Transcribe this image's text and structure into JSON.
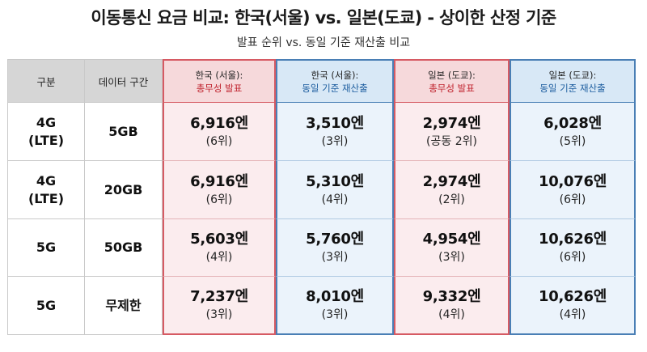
{
  "title": "이동통신 요금 비교: 한국(서울) vs. 일본(도쿄) - 상이한 산정 기준",
  "subtitle": "발표 순위 vs. 동일 기준 재산출 비교",
  "headers": {
    "category": "구분",
    "data_range": "데이터 구간",
    "kr_announced": {
      "line1": "한국 (서울):",
      "line2": "총무성 발표"
    },
    "kr_recalc": {
      "line1": "한국 (서울):",
      "line2": "동일 기준 재산출"
    },
    "jp_announced": {
      "line1": "일본 (도쿄):",
      "line2": "총무성 발표"
    },
    "jp_recalc": {
      "line1": "일본 (도쿄):",
      "line2": "동일 기준 재산출"
    }
  },
  "rows": [
    {
      "category": [
        "4G",
        "(LTE)"
      ],
      "data": "5GB",
      "kr_announced": {
        "price": "6,916엔",
        "rank": "(6위)"
      },
      "kr_recalc": {
        "price": "3,510엔",
        "rank": "(3위)"
      },
      "jp_announced": {
        "price": "2,974엔",
        "rank": "(공동 2위)"
      },
      "jp_recalc": {
        "price": "6,028엔",
        "rank": "(5위)"
      }
    },
    {
      "category": [
        "4G",
        "(LTE)"
      ],
      "data": "20GB",
      "kr_announced": {
        "price": "6,916엔",
        "rank": "(6위)"
      },
      "kr_recalc": {
        "price": "5,310엔",
        "rank": "(4위)"
      },
      "jp_announced": {
        "price": "2,974엔",
        "rank": "(2위)"
      },
      "jp_recalc": {
        "price": "10,076엔",
        "rank": "(6위)"
      }
    },
    {
      "category": [
        "5G"
      ],
      "data": "50GB",
      "kr_announced": {
        "price": "5,603엔",
        "rank": "(4위)"
      },
      "kr_recalc": {
        "price": "5,760엔",
        "rank": "(3위)"
      },
      "jp_announced": {
        "price": "4,954엔",
        "rank": "(3위)"
      },
      "jp_recalc": {
        "price": "10,626엔",
        "rank": "(6위)"
      }
    },
    {
      "category": [
        "5G"
      ],
      "data": "무제한",
      "kr_announced": {
        "price": "7,237엔",
        "rank": "(3위)"
      },
      "kr_recalc": {
        "price": "8,010엔",
        "rank": "(3위)"
      },
      "jp_announced": {
        "price": "9,332엔",
        "rank": "(4위)"
      },
      "jp_recalc": {
        "price": "10,626엔",
        "rank": "(4위)"
      }
    }
  ],
  "colors": {
    "red_accent": "#d65a63",
    "blue_accent": "#4a7fb5",
    "header_gray": "#d6d6d6"
  }
}
